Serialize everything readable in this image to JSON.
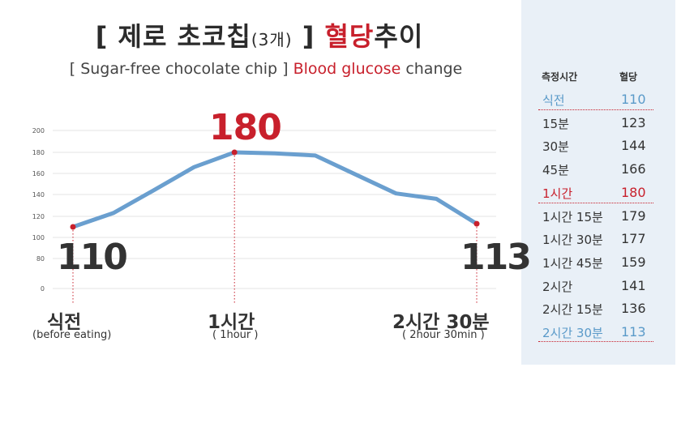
{
  "title": {
    "open": "[ 제로 초코칩",
    "count": "(3개)",
    "close": " ]",
    "highlight": " 혈당",
    "rest": "추이"
  },
  "subtitle": {
    "open": "[ Sugar-free chocolate chip ]",
    "highlight": " Blood glucose",
    "rest": " change"
  },
  "chart_data": {
    "type": "line",
    "y_ticks": [
      "0",
      "80",
      "100",
      "120",
      "140",
      "160",
      "180",
      "200"
    ],
    "points": [
      {
        "label": "식전",
        "value": 110
      },
      {
        "label": "15분",
        "value": 123
      },
      {
        "label": "30분",
        "value": 144
      },
      {
        "label": "45분",
        "value": 166
      },
      {
        "label": "1시간",
        "value": 180
      },
      {
        "label": "1시간 15분",
        "value": 179
      },
      {
        "label": "1시간 30분",
        "value": 177
      },
      {
        "label": "1시간 45분",
        "value": 159
      },
      {
        "label": "2시간",
        "value": 141
      },
      {
        "label": "2시간 15분",
        "value": 136
      },
      {
        "label": "2시간 30분",
        "value": 113
      }
    ],
    "line_color": "#6a9fcf",
    "marker_color": "#c8202c",
    "grid": true,
    "annotations": [
      {
        "text": "110",
        "sub": "식전",
        "sub2": "(before eating)"
      },
      {
        "text": "180",
        "sub": "1시간",
        "sub2": "( 1hour )"
      },
      {
        "text": "113",
        "sub": "2시간 30분",
        "sub2": "( 2hour 30min )"
      }
    ]
  },
  "table": {
    "header_time": "측정시간",
    "header_value": "혈당",
    "rows": [
      {
        "time": "식전",
        "value": "110"
      },
      {
        "time": "15분",
        "value": "123"
      },
      {
        "time": "30분",
        "value": "144"
      },
      {
        "time": "45분",
        "value": "166"
      },
      {
        "time": "1시간",
        "value": "180"
      },
      {
        "time": "1시간 15분",
        "value": "179"
      },
      {
        "time": "1시간 30분",
        "value": "177"
      },
      {
        "time": "1시간 45분",
        "value": "159"
      },
      {
        "time": "2시간",
        "value": "141"
      },
      {
        "time": "2시간 15분",
        "value": "136"
      },
      {
        "time": "2시간 30분",
        "value": "113"
      }
    ]
  },
  "colors": {
    "accent_red": "#c8202c",
    "accent_blue": "#5a9ac9",
    "panel_bg": "#e9f0f7"
  }
}
